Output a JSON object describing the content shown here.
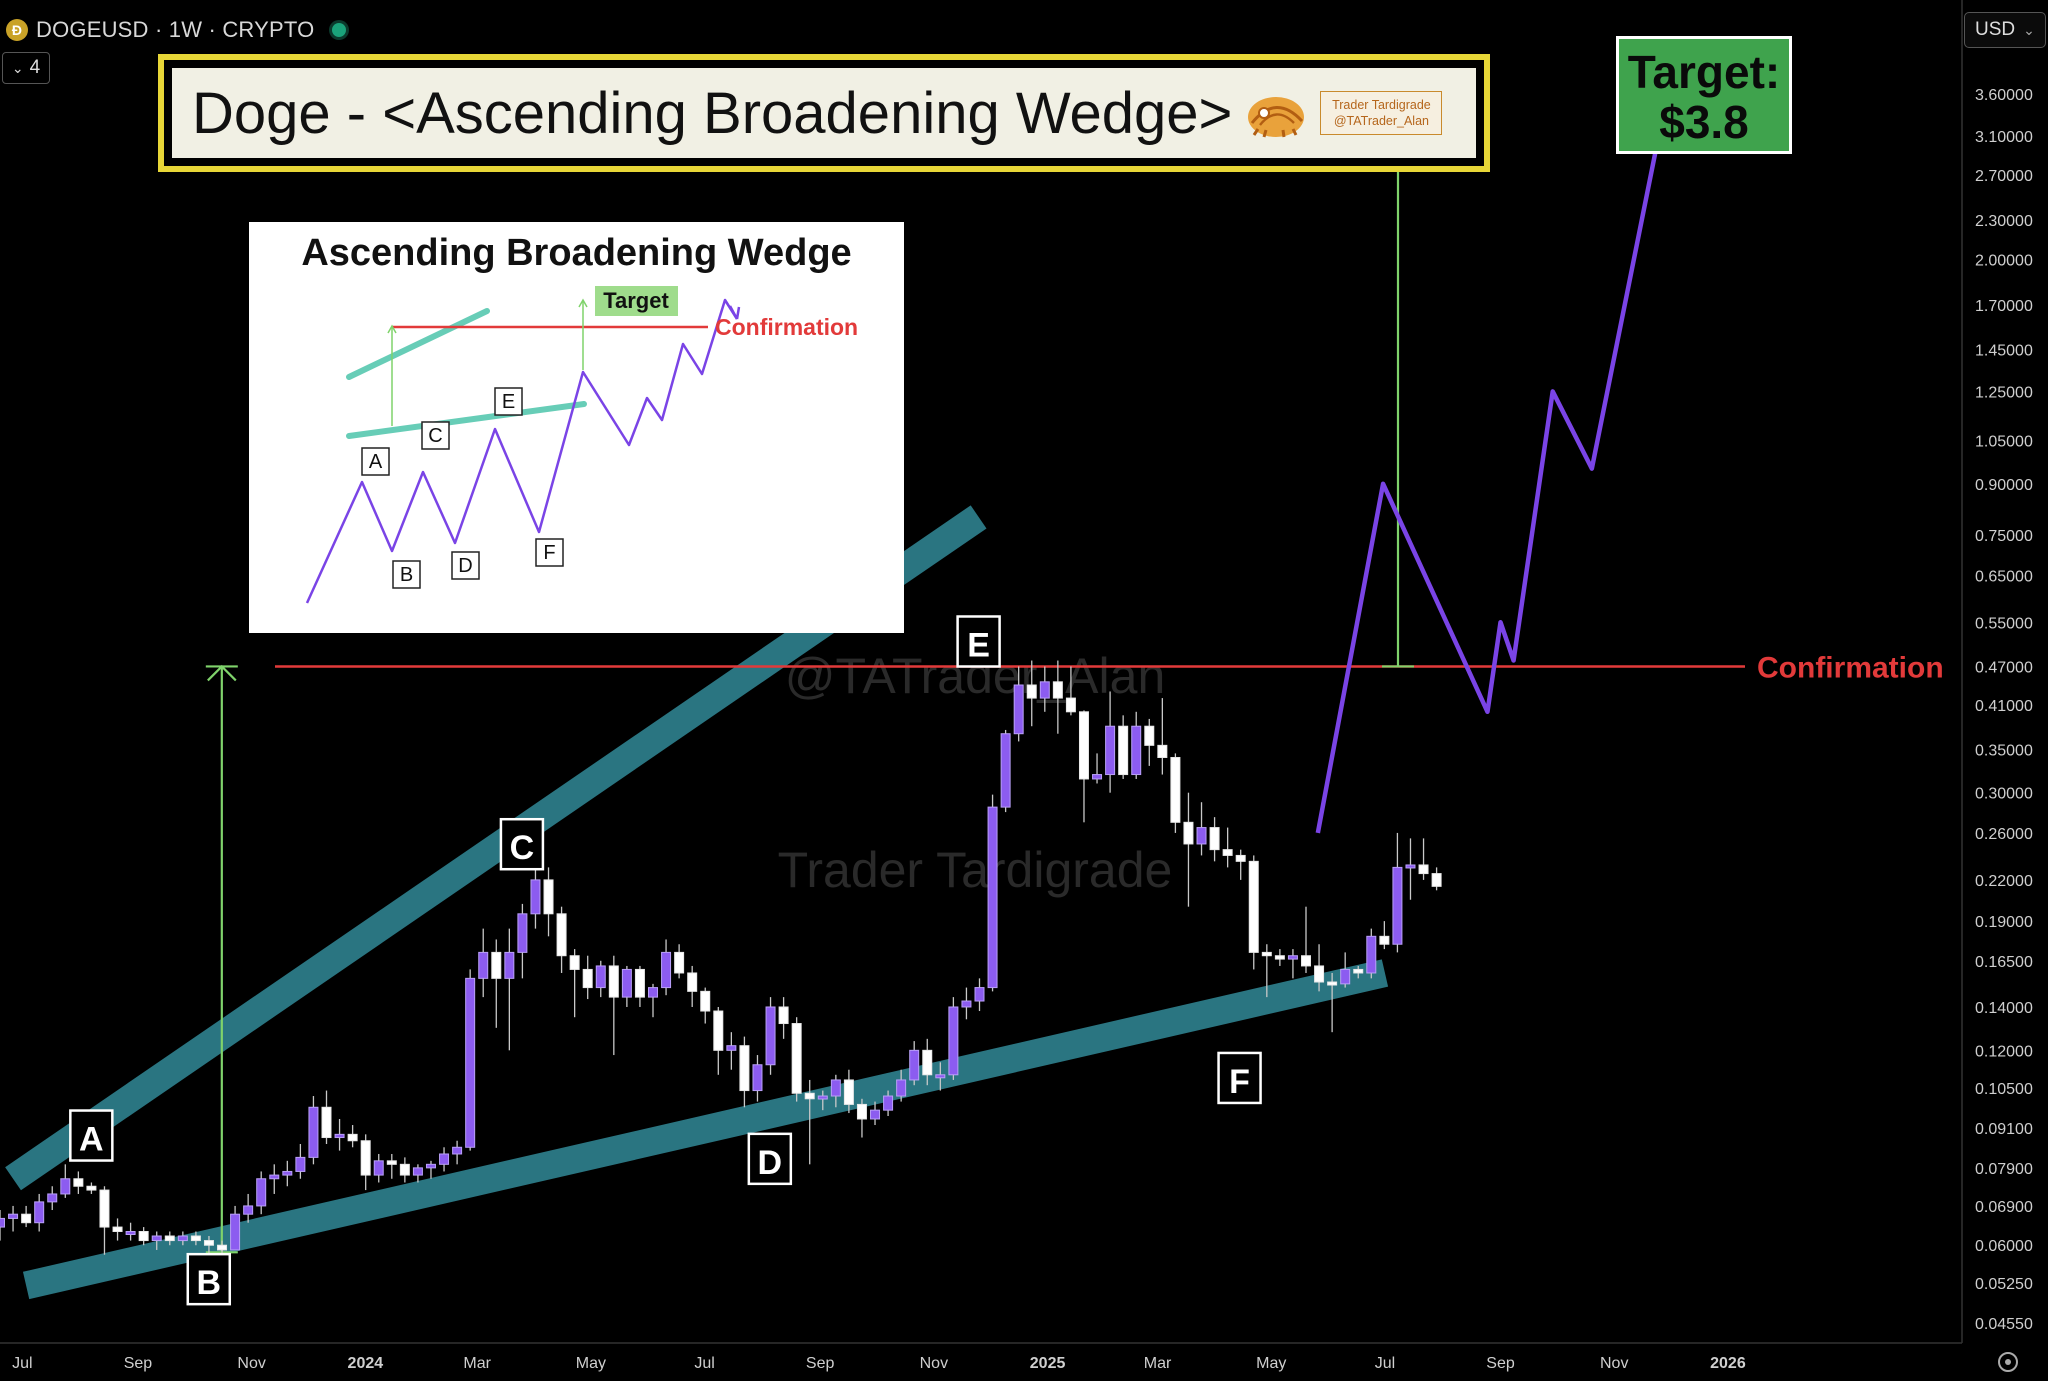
{
  "header": {
    "symbol": "DOGEUSD · 1W · CRYPTO",
    "coin_icon": "dogecoin-icon",
    "status_color": "#1aa37a",
    "collapse_label": "4",
    "currency": "USD"
  },
  "banner": {
    "title": "Doge - <Ascending Broadening Wedge>",
    "brand_line1": "Trader Tardigrade",
    "brand_line2": "@TATrader_Alan",
    "logo_icon": "tardigrade-logo-icon"
  },
  "target_box": {
    "line1": "Target:",
    "line2": "$3.8"
  },
  "watermarks": [
    "@TATrader_Alan",
    "Trader Tardigrade"
  ],
  "inset": {
    "title": "Ascending Broadening Wedge",
    "target_label": "Target",
    "confirmation_label": "Confirmation",
    "points": [
      "A",
      "B",
      "C",
      "D",
      "E",
      "F"
    ]
  },
  "colors": {
    "bull": "#8c5cf0",
    "wedge": "#2e7f8c",
    "confirmation": "#e23a3a",
    "target_arrow": "#7fd36b",
    "projection": "#7a44e6"
  },
  "chart_data": {
    "type": "candlestick",
    "title": "Doge - <Ascending Broadening Wedge>",
    "symbol": "DOGEUSD",
    "interval": "1W",
    "y_scale": "log",
    "ylim": [
      0.045,
      4.2
    ],
    "y_ticks": [
      3.6,
      3.1,
      2.7,
      2.3,
      2.0,
      1.7,
      1.45,
      1.25,
      1.05,
      0.9,
      0.75,
      0.65,
      0.55,
      0.47,
      0.41,
      0.35,
      0.3,
      0.26,
      0.22,
      0.19,
      0.165,
      0.14,
      0.12,
      0.105,
      0.091,
      0.079,
      0.069,
      0.06,
      0.0525,
      0.0455
    ],
    "y_tick_labels": [
      "3.60000",
      "3.10000",
      "2.70000",
      "2.30000",
      "2.00000",
      "1.70000",
      "1.45000",
      "1.25000",
      "1.05000",
      "0.90000",
      "0.75000",
      "0.65000",
      "0.55000",
      "0.47000",
      "0.41000",
      "0.35000",
      "0.30000",
      "0.26000",
      "0.22000",
      "0.19000",
      "0.16500",
      "0.14000",
      "0.12000",
      "0.10500",
      "0.09100",
      "0.07900",
      "0.06900",
      "0.06000",
      "0.05250",
      "0.04550"
    ],
    "x_ticks": [
      "Jul",
      "Sep",
      "Nov",
      "2024",
      "Mar",
      "May",
      "Jul",
      "Sep",
      "Nov",
      "2025",
      "Mar",
      "May",
      "Jul",
      "Sep",
      "Nov",
      "2026"
    ],
    "x_range": [
      "2023-06-19",
      "2026-01-05"
    ],
    "x_tick_dates": [
      "2023-07-01",
      "2023-09-01",
      "2023-11-01",
      "2024-01-01",
      "2024-03-01",
      "2024-05-01",
      "2024-07-01",
      "2024-09-01",
      "2024-11-01",
      "2025-01-01",
      "2025-03-01",
      "2025-05-01",
      "2025-07-01",
      "2025-09-01",
      "2025-11-01",
      "2026-01-01"
    ],
    "candles": [
      {
        "o": 0.064,
        "h": 0.068,
        "l": 0.061,
        "c": 0.066
      },
      {
        "o": 0.066,
        "h": 0.069,
        "l": 0.063,
        "c": 0.067
      },
      {
        "o": 0.067,
        "h": 0.069,
        "l": 0.064,
        "c": 0.065
      },
      {
        "o": 0.065,
        "h": 0.072,
        "l": 0.063,
        "c": 0.07
      },
      {
        "o": 0.07,
        "h": 0.074,
        "l": 0.068,
        "c": 0.072
      },
      {
        "o": 0.072,
        "h": 0.08,
        "l": 0.071,
        "c": 0.076
      },
      {
        "o": 0.076,
        "h": 0.078,
        "l": 0.072,
        "c": 0.074
      },
      {
        "o": 0.074,
        "h": 0.075,
        "l": 0.072,
        "c": 0.073
      },
      {
        "o": 0.073,
        "h": 0.074,
        "l": 0.058,
        "c": 0.064
      },
      {
        "o": 0.064,
        "h": 0.066,
        "l": 0.061,
        "c": 0.063
      },
      {
        "o": 0.063,
        "h": 0.065,
        "l": 0.061,
        "c": 0.063
      },
      {
        "o": 0.063,
        "h": 0.064,
        "l": 0.06,
        "c": 0.061
      },
      {
        "o": 0.061,
        "h": 0.063,
        "l": 0.059,
        "c": 0.062
      },
      {
        "o": 0.062,
        "h": 0.063,
        "l": 0.06,
        "c": 0.061
      },
      {
        "o": 0.061,
        "h": 0.063,
        "l": 0.06,
        "c": 0.062
      },
      {
        "o": 0.062,
        "h": 0.063,
        "l": 0.06,
        "c": 0.061
      },
      {
        "o": 0.061,
        "h": 0.062,
        "l": 0.058,
        "c": 0.06
      },
      {
        "o": 0.06,
        "h": 0.061,
        "l": 0.058,
        "c": 0.059
      },
      {
        "o": 0.059,
        "h": 0.069,
        "l": 0.059,
        "c": 0.067
      },
      {
        "o": 0.067,
        "h": 0.072,
        "l": 0.065,
        "c": 0.069
      },
      {
        "o": 0.069,
        "h": 0.078,
        "l": 0.067,
        "c": 0.076
      },
      {
        "o": 0.076,
        "h": 0.08,
        "l": 0.072,
        "c": 0.077
      },
      {
        "o": 0.077,
        "h": 0.081,
        "l": 0.074,
        "c": 0.078
      },
      {
        "o": 0.078,
        "h": 0.086,
        "l": 0.076,
        "c": 0.082
      },
      {
        "o": 0.082,
        "h": 0.102,
        "l": 0.08,
        "c": 0.098
      },
      {
        "o": 0.098,
        "h": 0.104,
        "l": 0.086,
        "c": 0.088
      },
      {
        "o": 0.088,
        "h": 0.094,
        "l": 0.084,
        "c": 0.089
      },
      {
        "o": 0.089,
        "h": 0.092,
        "l": 0.085,
        "c": 0.087
      },
      {
        "o": 0.087,
        "h": 0.089,
        "l": 0.073,
        "c": 0.077
      },
      {
        "o": 0.077,
        "h": 0.083,
        "l": 0.075,
        "c": 0.081
      },
      {
        "o": 0.081,
        "h": 0.083,
        "l": 0.076,
        "c": 0.08
      },
      {
        "o": 0.08,
        "h": 0.082,
        "l": 0.075,
        "c": 0.077
      },
      {
        "o": 0.077,
        "h": 0.08,
        "l": 0.075,
        "c": 0.079
      },
      {
        "o": 0.079,
        "h": 0.081,
        "l": 0.076,
        "c": 0.08
      },
      {
        "o": 0.08,
        "h": 0.085,
        "l": 0.078,
        "c": 0.083
      },
      {
        "o": 0.083,
        "h": 0.087,
        "l": 0.08,
        "c": 0.085
      },
      {
        "o": 0.085,
        "h": 0.16,
        "l": 0.084,
        "c": 0.155
      },
      {
        "o": 0.155,
        "h": 0.185,
        "l": 0.145,
        "c": 0.17
      },
      {
        "o": 0.17,
        "h": 0.178,
        "l": 0.13,
        "c": 0.155
      },
      {
        "o": 0.155,
        "h": 0.185,
        "l": 0.12,
        "c": 0.17
      },
      {
        "o": 0.17,
        "h": 0.202,
        "l": 0.155,
        "c": 0.195
      },
      {
        "o": 0.195,
        "h": 0.232,
        "l": 0.185,
        "c": 0.22
      },
      {
        "o": 0.22,
        "h": 0.23,
        "l": 0.18,
        "c": 0.195
      },
      {
        "o": 0.195,
        "h": 0.2,
        "l": 0.158,
        "c": 0.168
      },
      {
        "o": 0.168,
        "h": 0.172,
        "l": 0.135,
        "c": 0.16
      },
      {
        "o": 0.16,
        "h": 0.168,
        "l": 0.144,
        "c": 0.15
      },
      {
        "o": 0.15,
        "h": 0.165,
        "l": 0.145,
        "c": 0.162
      },
      {
        "o": 0.162,
        "h": 0.168,
        "l": 0.118,
        "c": 0.145
      },
      {
        "o": 0.145,
        "h": 0.162,
        "l": 0.14,
        "c": 0.16
      },
      {
        "o": 0.16,
        "h": 0.162,
        "l": 0.14,
        "c": 0.145
      },
      {
        "o": 0.145,
        "h": 0.152,
        "l": 0.135,
        "c": 0.15
      },
      {
        "o": 0.15,
        "h": 0.178,
        "l": 0.146,
        "c": 0.17
      },
      {
        "o": 0.17,
        "h": 0.175,
        "l": 0.155,
        "c": 0.158
      },
      {
        "o": 0.158,
        "h": 0.162,
        "l": 0.14,
        "c": 0.148
      },
      {
        "o": 0.148,
        "h": 0.15,
        "l": 0.132,
        "c": 0.138
      },
      {
        "o": 0.138,
        "h": 0.14,
        "l": 0.11,
        "c": 0.12
      },
      {
        "o": 0.12,
        "h": 0.128,
        "l": 0.112,
        "c": 0.122
      },
      {
        "o": 0.122,
        "h": 0.126,
        "l": 0.098,
        "c": 0.104
      },
      {
        "o": 0.104,
        "h": 0.118,
        "l": 0.1,
        "c": 0.114
      },
      {
        "o": 0.114,
        "h": 0.145,
        "l": 0.11,
        "c": 0.14
      },
      {
        "o": 0.14,
        "h": 0.145,
        "l": 0.125,
        "c": 0.132
      },
      {
        "o": 0.132,
        "h": 0.135,
        "l": 0.1,
        "c": 0.103
      },
      {
        "o": 0.103,
        "h": 0.108,
        "l": 0.08,
        "c": 0.101
      },
      {
        "o": 0.101,
        "h": 0.104,
        "l": 0.097,
        "c": 0.102
      },
      {
        "o": 0.102,
        "h": 0.11,
        "l": 0.098,
        "c": 0.108
      },
      {
        "o": 0.108,
        "h": 0.112,
        "l": 0.096,
        "c": 0.099
      },
      {
        "o": 0.099,
        "h": 0.101,
        "l": 0.088,
        "c": 0.094
      },
      {
        "o": 0.094,
        "h": 0.1,
        "l": 0.092,
        "c": 0.097
      },
      {
        "o": 0.097,
        "h": 0.104,
        "l": 0.095,
        "c": 0.102
      },
      {
        "o": 0.102,
        "h": 0.112,
        "l": 0.1,
        "c": 0.108
      },
      {
        "o": 0.108,
        "h": 0.124,
        "l": 0.106,
        "c": 0.12
      },
      {
        "o": 0.12,
        "h": 0.125,
        "l": 0.106,
        "c": 0.11
      },
      {
        "o": 0.11,
        "h": 0.115,
        "l": 0.104,
        "c": 0.11
      },
      {
        "o": 0.11,
        "h": 0.145,
        "l": 0.108,
        "c": 0.14
      },
      {
        "o": 0.14,
        "h": 0.15,
        "l": 0.134,
        "c": 0.143
      },
      {
        "o": 0.143,
        "h": 0.155,
        "l": 0.138,
        "c": 0.15
      },
      {
        "o": 0.15,
        "h": 0.298,
        "l": 0.148,
        "c": 0.285
      },
      {
        "o": 0.285,
        "h": 0.375,
        "l": 0.28,
        "c": 0.37
      },
      {
        "o": 0.37,
        "h": 0.47,
        "l": 0.36,
        "c": 0.44
      },
      {
        "o": 0.44,
        "h": 0.48,
        "l": 0.38,
        "c": 0.42
      },
      {
        "o": 0.42,
        "h": 0.47,
        "l": 0.4,
        "c": 0.445
      },
      {
        "o": 0.445,
        "h": 0.48,
        "l": 0.37,
        "c": 0.42
      },
      {
        "o": 0.42,
        "h": 0.47,
        "l": 0.395,
        "c": 0.4
      },
      {
        "o": 0.4,
        "h": 0.402,
        "l": 0.27,
        "c": 0.315
      },
      {
        "o": 0.315,
        "h": 0.345,
        "l": 0.31,
        "c": 0.32
      },
      {
        "o": 0.32,
        "h": 0.43,
        "l": 0.3,
        "c": 0.38
      },
      {
        "o": 0.38,
        "h": 0.395,
        "l": 0.315,
        "c": 0.32
      },
      {
        "o": 0.32,
        "h": 0.4,
        "l": 0.315,
        "c": 0.38
      },
      {
        "o": 0.38,
        "h": 0.39,
        "l": 0.33,
        "c": 0.355
      },
      {
        "o": 0.355,
        "h": 0.42,
        "l": 0.32,
        "c": 0.34
      },
      {
        "o": 0.34,
        "h": 0.345,
        "l": 0.26,
        "c": 0.27
      },
      {
        "o": 0.27,
        "h": 0.3,
        "l": 0.2,
        "c": 0.25
      },
      {
        "o": 0.25,
        "h": 0.29,
        "l": 0.24,
        "c": 0.265
      },
      {
        "o": 0.265,
        "h": 0.275,
        "l": 0.235,
        "c": 0.245
      },
      {
        "o": 0.245,
        "h": 0.265,
        "l": 0.23,
        "c": 0.24
      },
      {
        "o": 0.24,
        "h": 0.245,
        "l": 0.22,
        "c": 0.235
      },
      {
        "o": 0.235,
        "h": 0.24,
        "l": 0.16,
        "c": 0.17
      },
      {
        "o": 0.17,
        "h": 0.175,
        "l": 0.145,
        "c": 0.168
      },
      {
        "o": 0.168,
        "h": 0.172,
        "l": 0.162,
        "c": 0.166
      },
      {
        "o": 0.166,
        "h": 0.172,
        "l": 0.155,
        "c": 0.168
      },
      {
        "o": 0.168,
        "h": 0.2,
        "l": 0.158,
        "c": 0.162
      },
      {
        "o": 0.162,
        "h": 0.175,
        "l": 0.148,
        "c": 0.153
      },
      {
        "o": 0.153,
        "h": 0.158,
        "l": 0.128,
        "c": 0.152
      },
      {
        "o": 0.152,
        "h": 0.17,
        "l": 0.15,
        "c": 0.16
      },
      {
        "o": 0.16,
        "h": 0.162,
        "l": 0.155,
        "c": 0.158
      },
      {
        "o": 0.158,
        "h": 0.185,
        "l": 0.155,
        "c": 0.18
      },
      {
        "o": 0.18,
        "h": 0.19,
        "l": 0.172,
        "c": 0.175
      },
      {
        "o": 0.175,
        "h": 0.26,
        "l": 0.17,
        "c": 0.23
      },
      {
        "o": 0.23,
        "h": 0.255,
        "l": 0.205,
        "c": 0.232
      },
      {
        "o": 0.232,
        "h": 0.255,
        "l": 0.22,
        "c": 0.225
      },
      {
        "o": 0.225,
        "h": 0.23,
        "l": 0.212,
        "c": 0.215
      }
    ],
    "wedge_upper": [
      {
        "x": "2023-06-26",
        "y": 0.076
      },
      {
        "x": "2024-11-25",
        "y": 0.8
      }
    ],
    "wedge_lower": [
      {
        "x": "2023-07-03",
        "y": 0.052
      },
      {
        "x": "2025-07-01",
        "y": 0.158
      }
    ],
    "confirmation_level": 0.47,
    "confirmation_label": "Confirmation",
    "point_labels": [
      {
        "label": "A",
        "x": "2023-08-07",
        "y": 0.088
      },
      {
        "label": "B",
        "x": "2023-10-09",
        "y": 0.0528
      },
      {
        "label": "C",
        "x": "2024-03-25",
        "y": 0.248
      },
      {
        "label": "D",
        "x": "2024-08-05",
        "y": 0.081
      },
      {
        "label": "E",
        "x": "2024-11-25",
        "y": 0.51
      },
      {
        "label": "F",
        "x": "2025-04-14",
        "y": 0.108
      }
    ],
    "measured_moves": [
      {
        "x": "2023-10-16",
        "y_from": 0.0585,
        "y_to": 0.47
      },
      {
        "x": "2025-07-08",
        "y_from": 0.47,
        "y_to": 3.6
      }
    ],
    "projection_path": [
      {
        "x": "2025-05-26",
        "y": 0.26
      },
      {
        "x": "2025-06-30",
        "y": 0.9
      },
      {
        "x": "2025-08-25",
        "y": 0.4
      },
      {
        "x": "2025-09-01",
        "y": 0.55
      },
      {
        "x": "2025-09-08",
        "y": 0.48
      },
      {
        "x": "2025-09-29",
        "y": 1.25
      },
      {
        "x": "2025-10-20",
        "y": 0.95
      },
      {
        "x": "2025-12-01",
        "y": 3.8
      },
      {
        "x": "2025-12-08",
        "y": 3.4
      }
    ],
    "target": 3.8
  }
}
